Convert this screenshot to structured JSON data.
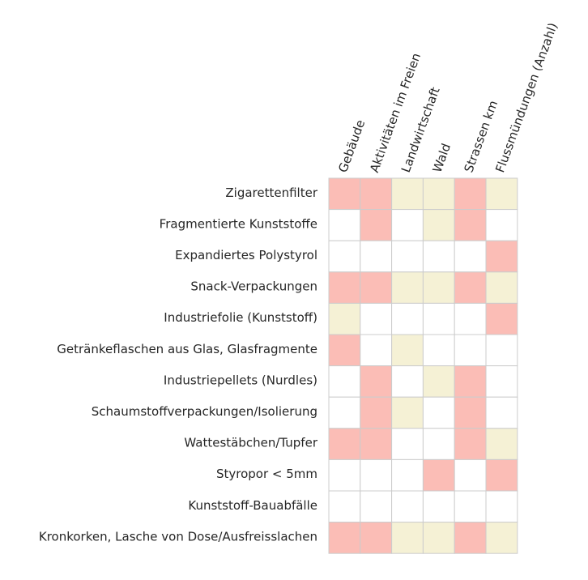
{
  "chart_data": {
    "type": "heatmap",
    "title": "",
    "xlabel": "",
    "ylabel": "",
    "columns": [
      "Gebäude",
      "Aktivitäten im Freien",
      "Landwirtschaft",
      "Wald",
      "Strassen km",
      "Flussmündungen (Anzahl)"
    ],
    "rows": [
      "Zigarettenfilter",
      "Fragmentierte Kunststoffe",
      "Expandiertes Polystyrol",
      "Snack-Verpackungen",
      "Industriefolie (Kunststoff)",
      "Getränkeflaschen aus Glas, Glasfragmente",
      "Industriepellets (Nurdles)",
      "Schaumstoffverpackungen/Isolierung",
      "Wattestäbchen/Tupfer",
      "Styropor < 5mm",
      "Kunststoff-Bauabfälle",
      "Kronkorken, Lasche von Dose/Ausfreisslachen"
    ],
    "values": [
      [
        "positive",
        "positive",
        "negative",
        "negative",
        "positive",
        "negative"
      ],
      [
        "none",
        "positive",
        "none",
        "negative",
        "positive",
        "none"
      ],
      [
        "none",
        "none",
        "none",
        "none",
        "none",
        "positive"
      ],
      [
        "positive",
        "positive",
        "negative",
        "negative",
        "positive",
        "negative"
      ],
      [
        "negative",
        "none",
        "none",
        "none",
        "none",
        "positive"
      ],
      [
        "positive",
        "none",
        "negative",
        "none",
        "none",
        "none"
      ],
      [
        "none",
        "positive",
        "none",
        "negative",
        "positive",
        "none"
      ],
      [
        "none",
        "positive",
        "negative",
        "none",
        "positive",
        "none"
      ],
      [
        "positive",
        "positive",
        "none",
        "none",
        "positive",
        "negative"
      ],
      [
        "none",
        "none",
        "none",
        "positive",
        "none",
        "positive"
      ],
      [
        "none",
        "none",
        "none",
        "none",
        "none",
        "none"
      ],
      [
        "positive",
        "positive",
        "negative",
        "negative",
        "positive",
        "negative"
      ]
    ],
    "colors": {
      "positive": "#fbbdb6",
      "negative": "#f5f1d5",
      "none": "#ffffff",
      "grid": "#cccccc",
      "text": "#262626"
    },
    "legend": "none",
    "grid": true
  }
}
